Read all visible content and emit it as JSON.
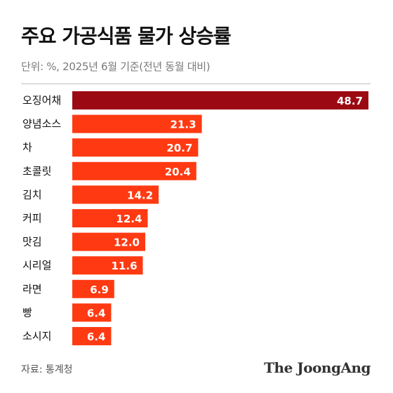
{
  "header": {
    "title": "주요 가공식품 물가 상승률",
    "subtitle": "단위: %, 2025년 6월 기준(전년 동월 대비)"
  },
  "footer": {
    "source": "자료: 통계청",
    "brand": "The JoongAng"
  },
  "colors": {
    "highlight_bar": "#9b0a12",
    "bar": "#ff3a12",
    "divider": "#bdbdbd"
  },
  "chart_data": {
    "type": "bar",
    "orientation": "horizontal",
    "title": "주요 가공식품 물가 상승률",
    "categories": [
      "오징어채",
      "양념소스",
      "차",
      "초콜릿",
      "김치",
      "커피",
      "맛김",
      "시리얼",
      "라면",
      "빵",
      "소시지"
    ],
    "values": [
      48.7,
      21.3,
      20.7,
      20.4,
      14.2,
      12.4,
      12.0,
      11.6,
      6.9,
      6.4,
      6.4
    ],
    "value_labels": [
      "48.7",
      "21.3",
      "20.7",
      "20.4",
      "14.2",
      "12.4",
      "12.0",
      "11.6",
      "6.9",
      "6.4",
      "6.4"
    ],
    "highlight_index": 0,
    "xlim": [
      0,
      48.7
    ],
    "grid": false,
    "legend": "none"
  }
}
